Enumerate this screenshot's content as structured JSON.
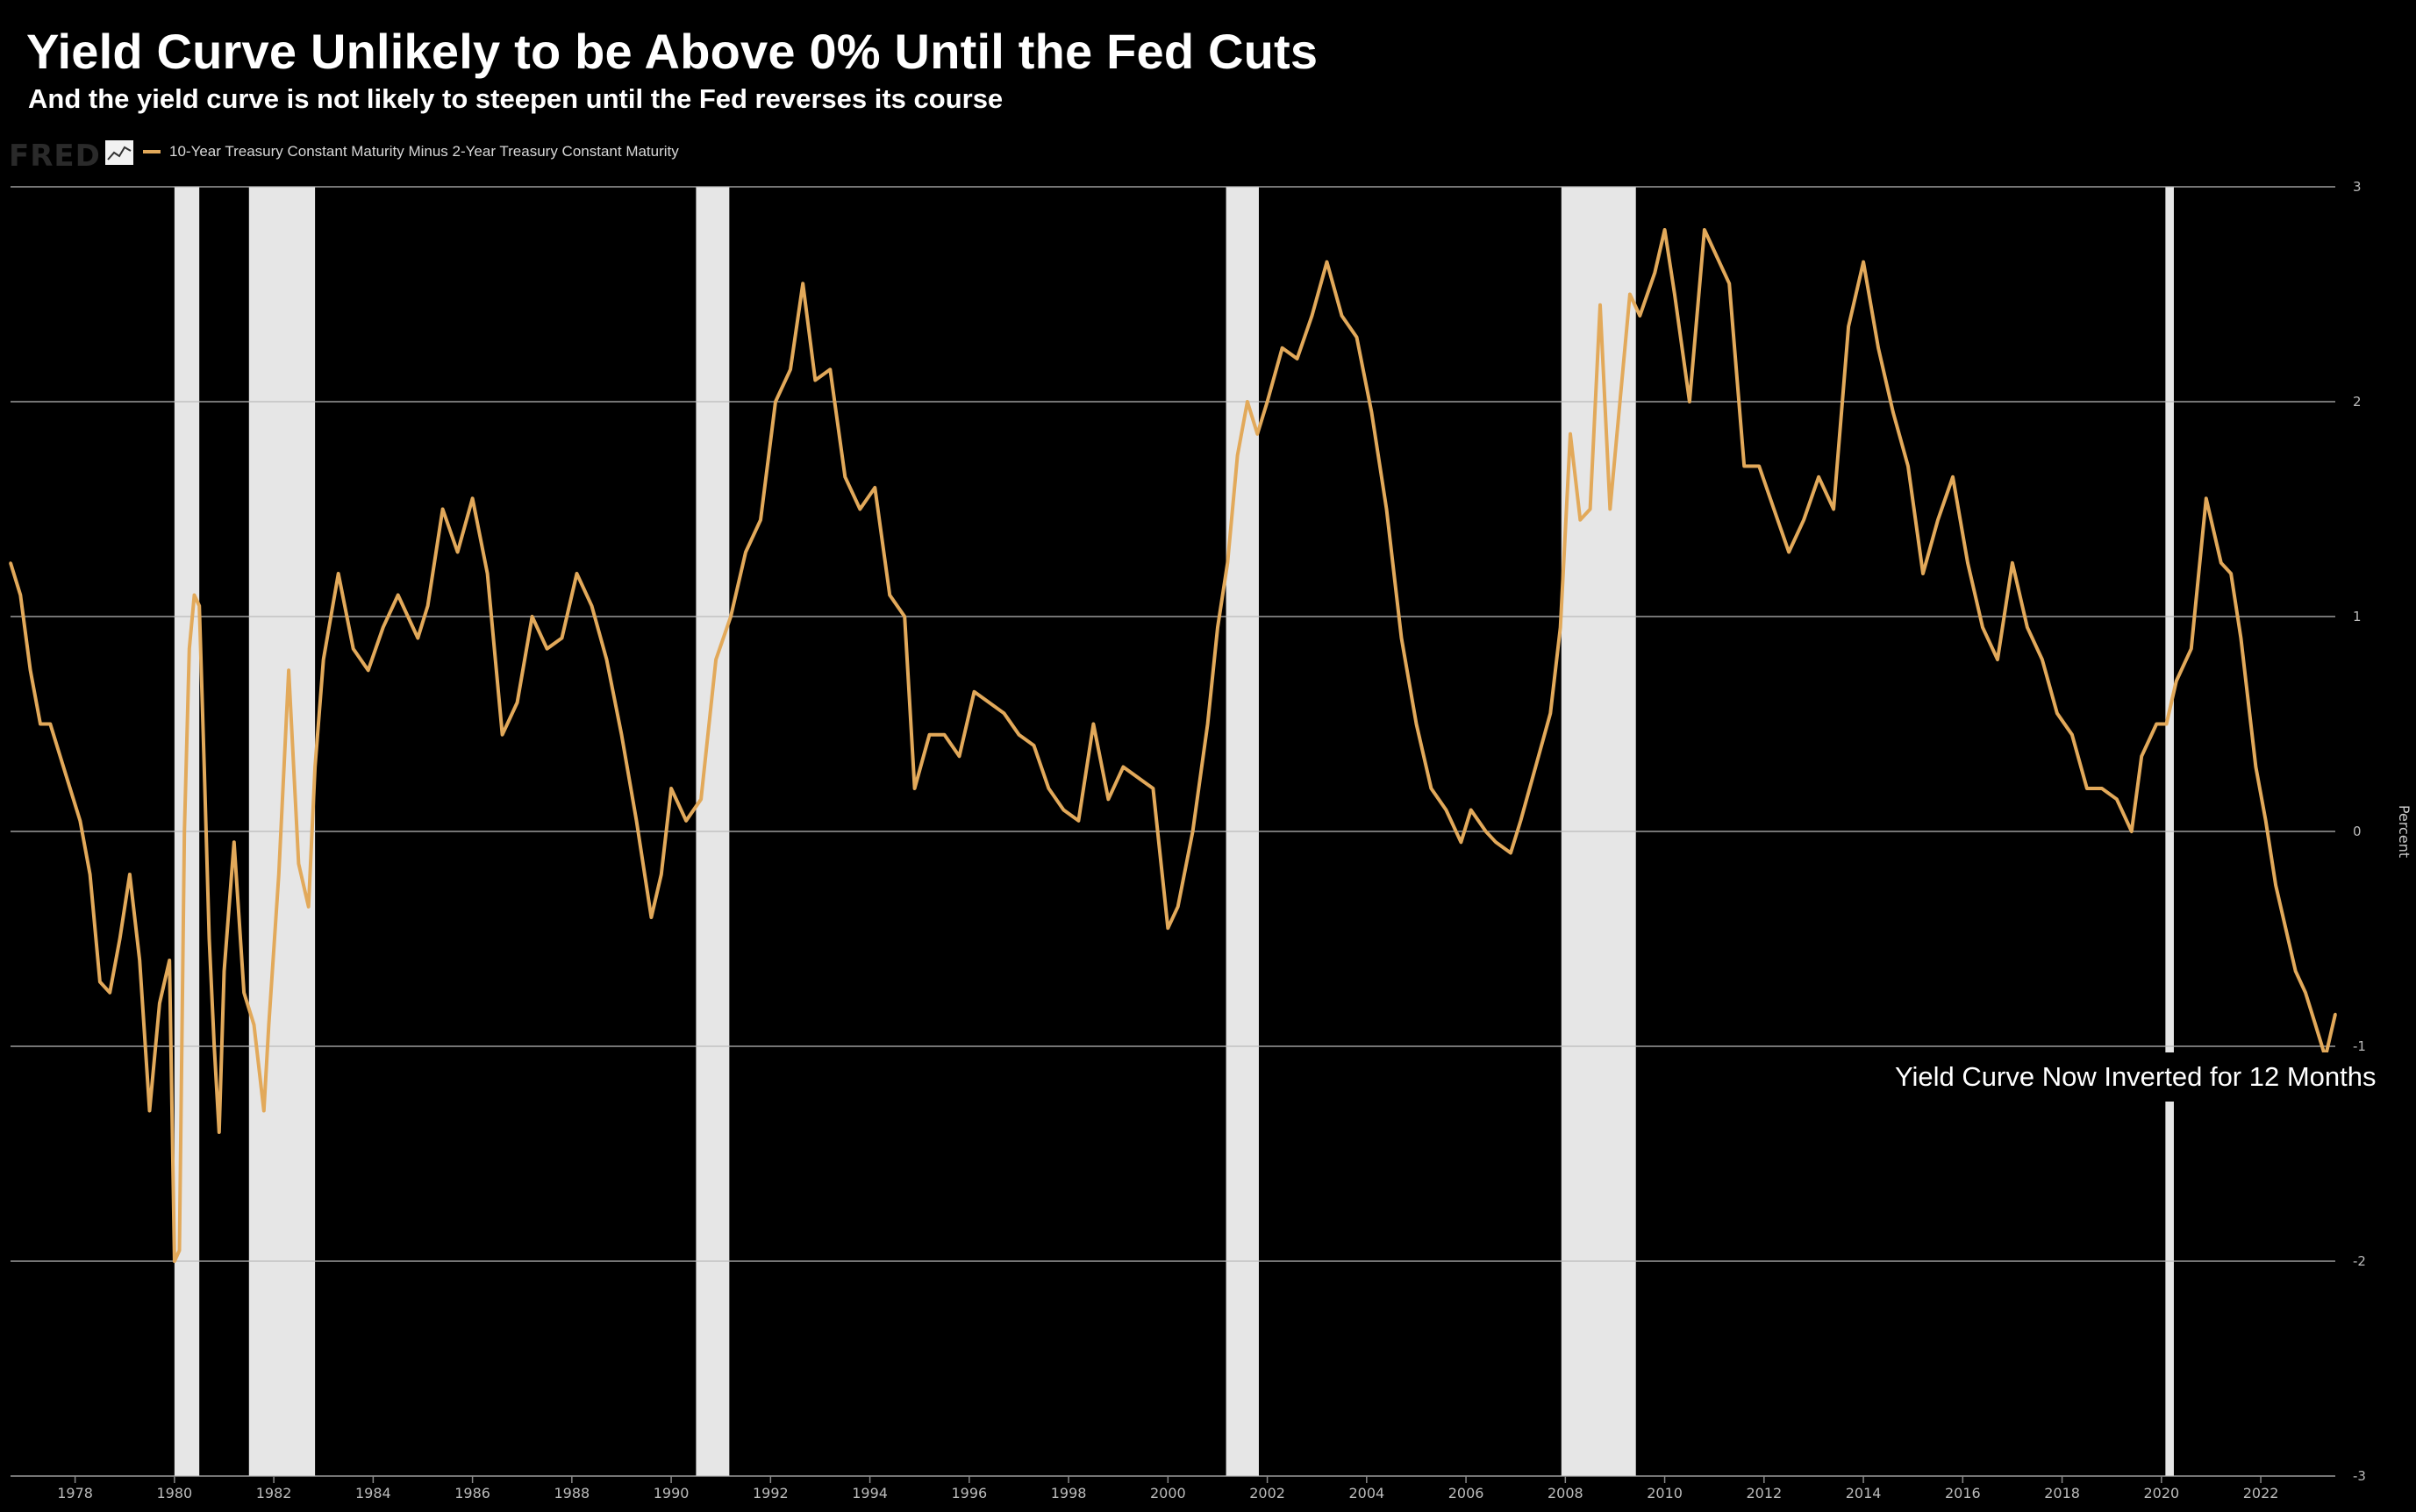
{
  "header": {
    "title": "Yield Curve Unlikely to be Above 0% Until the Fed Cuts",
    "subtitle": "And the yield curve is not likely to steepen until the Fed reverses its course"
  },
  "logo": {
    "text": "FRED"
  },
  "annotation": "Yield Curve Now Inverted for 12 Months",
  "colors": {
    "background": "#000000",
    "line": "#e2a95a",
    "recession": "#e6e6e6",
    "grid": "#bbbbbb"
  },
  "chart_data": {
    "type": "line",
    "ylabel": "Percent",
    "ylim": [
      -3,
      3
    ],
    "xlim": [
      1976.7,
      2023.5
    ],
    "yticks": [
      -3,
      -2,
      -1,
      0,
      1,
      2,
      3
    ],
    "xticks": [
      "1978",
      "1980",
      "1982",
      "1984",
      "1986",
      "1988",
      "1990",
      "1992",
      "1994",
      "1996",
      "1998",
      "2000",
      "2002",
      "2004",
      "2006",
      "2008",
      "2010",
      "2012",
      "2014",
      "2016",
      "2018",
      "2020",
      "2022"
    ],
    "grid": true,
    "legend_position": "top-left",
    "recessions": [
      [
        1980.0,
        1980.5
      ],
      [
        1981.5,
        1982.83
      ],
      [
        1990.5,
        1991.17
      ],
      [
        2001.17,
        2001.83
      ],
      [
        2007.92,
        2009.42
      ],
      [
        2020.08,
        2020.25
      ]
    ],
    "series": [
      {
        "name": "10-Year Treasury Constant Maturity Minus 2-Year Treasury Constant Maturity",
        "x": [
          1976.7,
          1976.9,
          1977.1,
          1977.3,
          1977.5,
          1977.7,
          1977.9,
          1978.1,
          1978.3,
          1978.5,
          1978.7,
          1978.9,
          1979.1,
          1979.3,
          1979.5,
          1979.7,
          1979.9,
          1980.0,
          1980.1,
          1980.2,
          1980.3,
          1980.4,
          1980.5,
          1980.6,
          1980.7,
          1980.8,
          1980.9,
          1981.0,
          1981.2,
          1981.4,
          1981.6,
          1981.8,
          1981.9,
          1982.1,
          1982.3,
          1982.5,
          1982.7,
          1982.83,
          1983.0,
          1983.3,
          1983.6,
          1983.9,
          1984.2,
          1984.5,
          1984.7,
          1984.9,
          1985.1,
          1985.4,
          1985.7,
          1986.0,
          1986.3,
          1986.6,
          1986.9,
          1987.2,
          1987.5,
          1987.8,
          1988.1,
          1988.4,
          1988.7,
          1989.0,
          1989.3,
          1989.6,
          1989.8,
          1990.0,
          1990.3,
          1990.6,
          1990.9,
          1991.2,
          1991.5,
          1991.8,
          1992.1,
          1992.4,
          1992.65,
          1992.9,
          1993.2,
          1993.5,
          1993.8,
          1994.1,
          1994.4,
          1994.7,
          1994.9,
          1995.2,
          1995.5,
          1995.8,
          1996.1,
          1996.4,
          1996.7,
          1997.0,
          1997.3,
          1997.6,
          1997.9,
          1998.2,
          1998.5,
          1998.8,
          1999.1,
          1999.4,
          1999.7,
          2000.0,
          2000.2,
          2000.5,
          2000.8,
          2001.0,
          2001.2,
          2001.4,
          2001.6,
          2001.8,
          2002.0,
          2002.3,
          2002.6,
          2002.9,
          2003.2,
          2003.5,
          2003.8,
          2004.1,
          2004.4,
          2004.7,
          2005.0,
          2005.3,
          2005.6,
          2005.9,
          2006.1,
          2006.4,
          2006.6,
          2006.9,
          2007.1,
          2007.4,
          2007.7,
          2007.9,
          2008.1,
          2008.3,
          2008.5,
          2008.7,
          2008.9,
          2009.1,
          2009.3,
          2009.5,
          2009.8,
          2010.0,
          2010.2,
          2010.5,
          2010.8,
          2011.0,
          2011.3,
          2011.6,
          2011.9,
          2012.2,
          2012.5,
          2012.8,
          2013.1,
          2013.4,
          2013.7,
          2014.0,
          2014.3,
          2014.6,
          2014.9,
          2015.2,
          2015.5,
          2015.8,
          2016.1,
          2016.4,
          2016.7,
          2017.0,
          2017.3,
          2017.6,
          2017.9,
          2018.2,
          2018.5,
          2018.8,
          2019.1,
          2019.4,
          2019.6,
          2019.9,
          2020.1,
          2020.3,
          2020.6,
          2020.9,
          2021.2,
          2021.4,
          2021.6,
          2021.9,
          2022.1,
          2022.3,
          2022.5,
          2022.7,
          2022.9,
          2023.1,
          2023.3,
          2023.5
        ],
        "values": [
          1.25,
          1.1,
          0.75,
          0.5,
          0.5,
          0.35,
          0.2,
          0.05,
          -0.2,
          -0.7,
          -0.75,
          -0.5,
          -0.2,
          -0.6,
          -1.3,
          -0.8,
          -0.6,
          -2.0,
          -1.95,
          0.0,
          0.85,
          1.1,
          1.05,
          0.3,
          -0.5,
          -1.0,
          -1.4,
          -0.65,
          -0.05,
          -0.75,
          -0.9,
          -1.3,
          -0.9,
          -0.2,
          0.75,
          -0.15,
          -0.35,
          0.3,
          0.8,
          1.2,
          0.85,
          0.75,
          0.95,
          1.1,
          1.0,
          0.9,
          1.05,
          1.5,
          1.3,
          1.55,
          1.2,
          0.45,
          0.6,
          1.0,
          0.85,
          0.9,
          1.2,
          1.05,
          0.8,
          0.45,
          0.05,
          -0.4,
          -0.2,
          0.2,
          0.05,
          0.15,
          0.8,
          1.0,
          1.3,
          1.45,
          2.0,
          2.15,
          2.55,
          2.1,
          2.15,
          1.65,
          1.5,
          1.6,
          1.1,
          1.0,
          0.2,
          0.45,
          0.45,
          0.35,
          0.65,
          0.6,
          0.55,
          0.45,
          0.4,
          0.2,
          0.1,
          0.05,
          0.5,
          0.15,
          0.3,
          0.25,
          0.2,
          -0.45,
          -0.35,
          0.0,
          0.5,
          0.95,
          1.25,
          1.75,
          2.0,
          1.85,
          2.0,
          2.25,
          2.2,
          2.4,
          2.65,
          2.4,
          2.3,
          1.95,
          1.5,
          0.9,
          0.5,
          0.2,
          0.1,
          -0.05,
          0.1,
          0.0,
          -0.05,
          -0.1,
          0.05,
          0.3,
          0.55,
          0.95,
          1.85,
          1.45,
          1.5,
          2.45,
          1.5,
          2.0,
          2.5,
          2.4,
          2.6,
          2.8,
          2.5,
          2.0,
          2.8,
          2.7,
          2.55,
          1.7,
          1.7,
          1.5,
          1.3,
          1.45,
          1.65,
          1.5,
          2.35,
          2.65,
          2.25,
          1.95,
          1.7,
          1.2,
          1.45,
          1.65,
          1.25,
          0.95,
          0.8,
          1.25,
          0.95,
          0.8,
          0.55,
          0.45,
          0.2,
          0.2,
          0.15,
          0.0,
          0.35,
          0.5,
          0.5,
          0.7,
          0.85,
          1.55,
          1.25,
          1.2,
          0.9,
          0.3,
          0.05,
          -0.25,
          -0.45,
          -0.65,
          -0.75,
          -0.9,
          -1.05,
          -0.85
        ]
      }
    ]
  }
}
